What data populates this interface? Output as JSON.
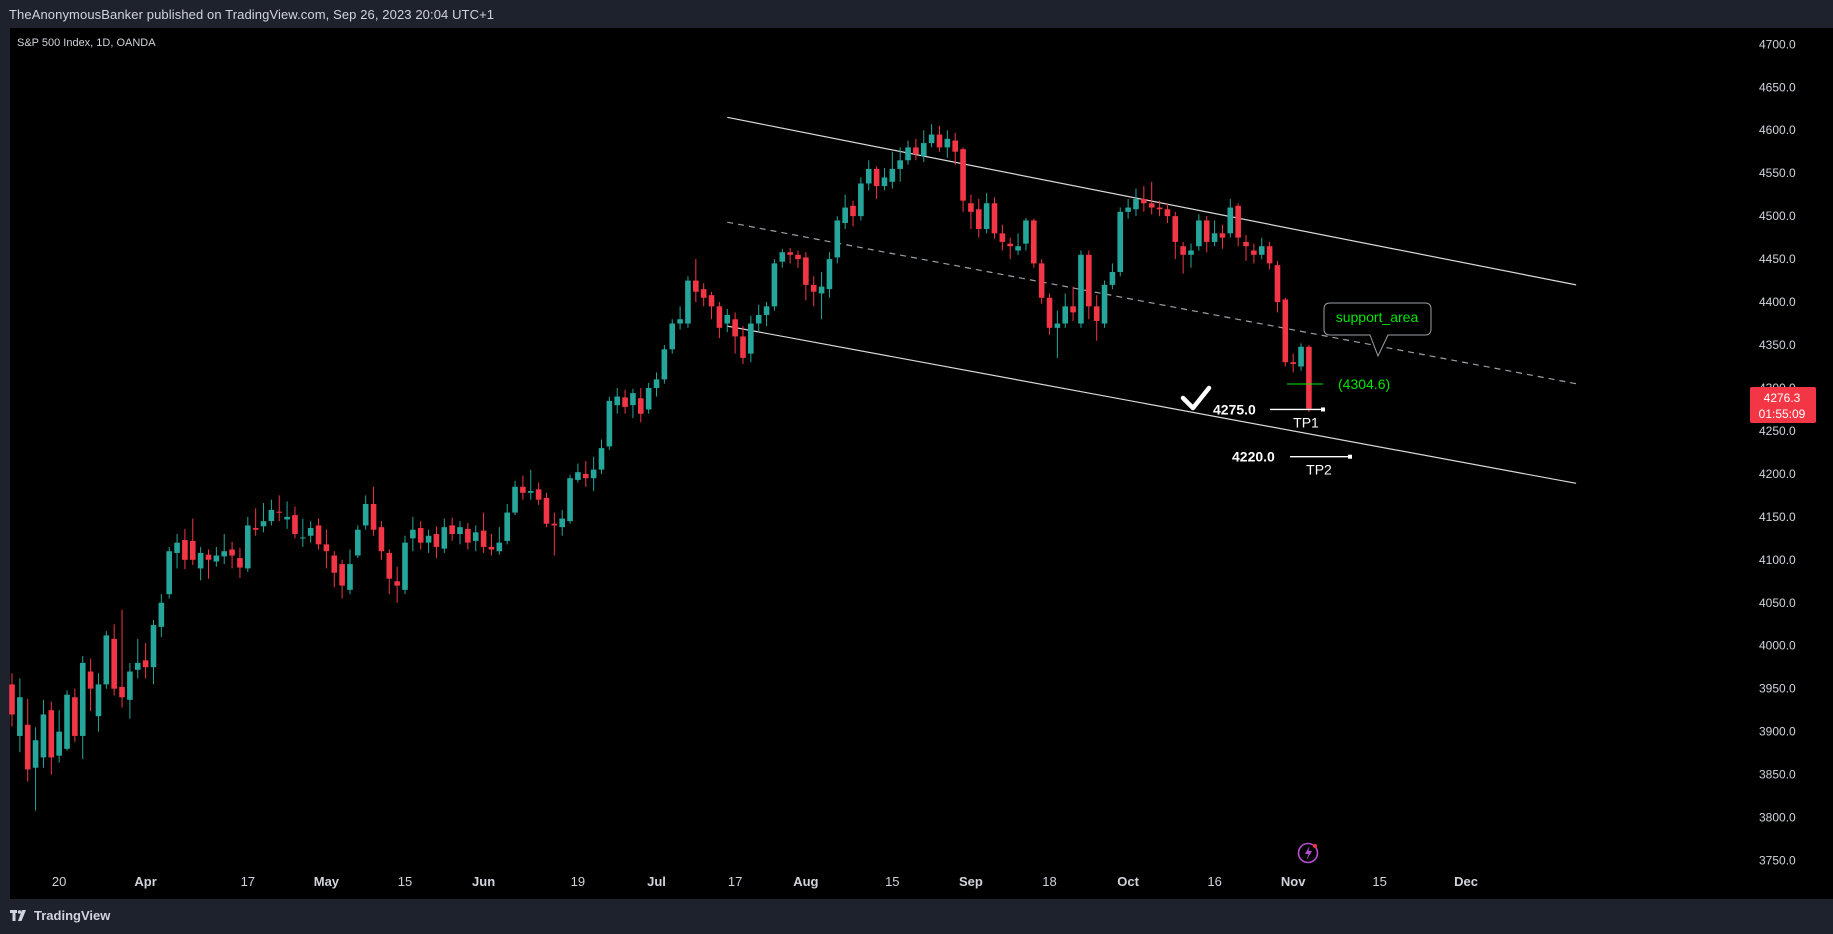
{
  "header": {
    "published_line": "TheAnonymousBanker published on TradingView.com, Sep 26, 2023 20:04 UTC+1"
  },
  "footer": {
    "brand": "TradingView"
  },
  "colors": {
    "background": "#000000",
    "frame": "#1e222d",
    "up": "#26a69a",
    "down": "#f23645",
    "text": "#d1d4dc",
    "annotation_green": "#00e600",
    "price_tag": "#f23645"
  },
  "chart_data": {
    "type": "candlestick",
    "symbol_line": "S&P 500 Index, 1D, OANDA",
    "ylim": [
      3725,
      4712
    ],
    "y_ticks": [
      "4700.0",
      "4650.0",
      "4600.0",
      "4550.0",
      "4500.0",
      "4450.0",
      "4400.0",
      "4350.0",
      "4300.0",
      "4250.0",
      "4200.0",
      "4150.0",
      "4100.0",
      "4050.0",
      "4000.0",
      "3950.0",
      "3900.0",
      "3850.0",
      "3800.0",
      "3750.0"
    ],
    "x_ticks": [
      "20",
      "Apr",
      "17",
      "May",
      "15",
      "Jun",
      "19",
      "Jul",
      "17",
      "Aug",
      "15",
      "Sep",
      "18",
      "Oct",
      "16",
      "Nov",
      "15",
      "Dec"
    ],
    "last_price": {
      "value": "4276.3",
      "countdown": "01:55:09"
    },
    "candles": [
      {
        "x": 0,
        "o": 3955,
        "c": 3920,
        "h": 3968,
        "l": 3906
      },
      {
        "x": 1,
        "o": 3895,
        "c": 3940,
        "h": 3962,
        "l": 3876
      },
      {
        "x": 2,
        "o": 3908,
        "c": 3856,
        "h": 3938,
        "l": 3842
      },
      {
        "x": 3,
        "o": 3858,
        "c": 3890,
        "h": 3905,
        "l": 3808
      },
      {
        "x": 4,
        "o": 3870,
        "c": 3920,
        "h": 3937,
        "l": 3858
      },
      {
        "x": 5,
        "o": 3925,
        "c": 3870,
        "h": 3935,
        "l": 3850
      },
      {
        "x": 6,
        "o": 3872,
        "c": 3900,
        "h": 3925,
        "l": 3864
      },
      {
        "x": 7,
        "o": 3880,
        "c": 3943,
        "h": 3948,
        "l": 3878
      },
      {
        "x": 8,
        "o": 3940,
        "c": 3895,
        "h": 3950,
        "l": 3888
      },
      {
        "x": 9,
        "o": 3895,
        "c": 3980,
        "h": 3988,
        "l": 3868
      },
      {
        "x": 10,
        "o": 3970,
        "c": 3950,
        "h": 3985,
        "l": 3924
      },
      {
        "x": 11,
        "o": 3918,
        "c": 3955,
        "h": 3968,
        "l": 3900
      },
      {
        "x": 12,
        "o": 3955,
        "c": 4012,
        "h": 4017,
        "l": 3950
      },
      {
        "x": 13,
        "o": 4008,
        "c": 3950,
        "h": 4025,
        "l": 3942
      },
      {
        "x": 14,
        "o": 3952,
        "c": 3940,
        "h": 4042,
        "l": 3928
      },
      {
        "x": 15,
        "o": 3937,
        "c": 3970,
        "h": 3980,
        "l": 3915
      },
      {
        "x": 16,
        "o": 3972,
        "c": 3980,
        "h": 4008,
        "l": 3962
      },
      {
        "x": 17,
        "o": 3983,
        "c": 3975,
        "h": 4003,
        "l": 3962
      },
      {
        "x": 18,
        "o": 3975,
        "c": 4024,
        "h": 4030,
        "l": 3955
      },
      {
        "x": 19,
        "o": 4022,
        "c": 4050,
        "h": 4060,
        "l": 4010
      },
      {
        "x": 20,
        "o": 4060,
        "c": 4110,
        "h": 4115,
        "l": 4055
      },
      {
        "x": 21,
        "o": 4108,
        "c": 4120,
        "h": 4130,
        "l": 4090
      },
      {
        "x": 22,
        "o": 4123,
        "c": 4100,
        "h": 4136,
        "l": 4089
      },
      {
        "x": 23,
        "o": 4122,
        "c": 4100,
        "h": 4148,
        "l": 4094
      },
      {
        "x": 24,
        "o": 4090,
        "c": 4108,
        "h": 4115,
        "l": 4076
      },
      {
        "x": 25,
        "o": 4106,
        "c": 4100,
        "h": 4112,
        "l": 4078
      },
      {
        "x": 26,
        "o": 4098,
        "c": 4105,
        "h": 4115,
        "l": 4092
      },
      {
        "x": 27,
        "o": 4104,
        "c": 4110,
        "h": 4130,
        "l": 4095
      },
      {
        "x": 28,
        "o": 4112,
        "c": 4105,
        "h": 4121,
        "l": 4090
      },
      {
        "x": 29,
        "o": 4102,
        "c": 4091,
        "h": 4114,
        "l": 4079
      },
      {
        "x": 30,
        "o": 4090,
        "c": 4140,
        "h": 4150,
        "l": 4086
      },
      {
        "x": 31,
        "o": 4137,
        "c": 4135,
        "h": 4160,
        "l": 4128
      },
      {
        "x": 32,
        "o": 4139,
        "c": 4145,
        "h": 4166,
        "l": 4132
      },
      {
        "x": 33,
        "o": 4145,
        "c": 4158,
        "h": 4170,
        "l": 4140
      },
      {
        "x": 34,
        "o": 4156,
        "c": 4155,
        "h": 4175,
        "l": 4145
      },
      {
        "x": 35,
        "o": 4147,
        "c": 4150,
        "h": 4168,
        "l": 4136
      },
      {
        "x": 36,
        "o": 4152,
        "c": 4130,
        "h": 4162,
        "l": 4125
      },
      {
        "x": 37,
        "o": 4125,
        "c": 4126,
        "h": 4148,
        "l": 4115
      },
      {
        "x": 38,
        "o": 4128,
        "c": 4137,
        "h": 4145,
        "l": 4120
      },
      {
        "x": 39,
        "o": 4140,
        "c": 4118,
        "h": 4148,
        "l": 4112
      },
      {
        "x": 40,
        "o": 4118,
        "c": 4110,
        "h": 4135,
        "l": 4090
      },
      {
        "x": 41,
        "o": 4105,
        "c": 4085,
        "h": 4110,
        "l": 4068
      },
      {
        "x": 42,
        "o": 4095,
        "c": 4070,
        "h": 4100,
        "l": 4055
      },
      {
        "x": 43,
        "o": 4065,
        "c": 4095,
        "h": 4112,
        "l": 4060
      },
      {
        "x": 44,
        "o": 4105,
        "c": 4135,
        "h": 4140,
        "l": 4102
      },
      {
        "x": 45,
        "o": 4140,
        "c": 4165,
        "h": 4175,
        "l": 4135
      },
      {
        "x": 46,
        "o": 4165,
        "c": 4135,
        "h": 4185,
        "l": 4128
      },
      {
        "x": 47,
        "o": 4138,
        "c": 4110,
        "h": 4145,
        "l": 4100
      },
      {
        "x": 48,
        "o": 4108,
        "c": 4078,
        "h": 4112,
        "l": 4060
      },
      {
        "x": 49,
        "o": 4075,
        "c": 4070,
        "h": 4092,
        "l": 4050
      },
      {
        "x": 50,
        "o": 4065,
        "c": 4120,
        "h": 4128,
        "l": 4060
      },
      {
        "x": 51,
        "o": 4125,
        "c": 4135,
        "h": 4150,
        "l": 4110
      },
      {
        "x": 52,
        "o": 4137,
        "c": 4120,
        "h": 4145,
        "l": 4112
      },
      {
        "x": 53,
        "o": 4120,
        "c": 4128,
        "h": 4135,
        "l": 4108
      },
      {
        "x": 54,
        "o": 4130,
        "c": 4115,
        "h": 4139,
        "l": 4102
      },
      {
        "x": 55,
        "o": 4113,
        "c": 4138,
        "h": 4148,
        "l": 4108
      },
      {
        "x": 56,
        "o": 4140,
        "c": 4130,
        "h": 4149,
        "l": 4122
      },
      {
        "x": 57,
        "o": 4130,
        "c": 4138,
        "h": 4145,
        "l": 4118
      },
      {
        "x": 58,
        "o": 4136,
        "c": 4120,
        "h": 4143,
        "l": 4112
      },
      {
        "x": 59,
        "o": 4122,
        "c": 4132,
        "h": 4140,
        "l": 4110
      },
      {
        "x": 60,
        "o": 4134,
        "c": 4115,
        "h": 4155,
        "l": 4108
      },
      {
        "x": 61,
        "o": 4115,
        "c": 4112,
        "h": 4130,
        "l": 4105
      },
      {
        "x": 62,
        "o": 4110,
        "c": 4120,
        "h": 4138,
        "l": 4106
      },
      {
        "x": 63,
        "o": 4122,
        "c": 4155,
        "h": 4165,
        "l": 4118
      },
      {
        "x": 64,
        "o": 4155,
        "c": 4185,
        "h": 4192,
        "l": 4152
      },
      {
        "x": 65,
        "o": 4185,
        "c": 4178,
        "h": 4198,
        "l": 4170
      },
      {
        "x": 66,
        "o": 4178,
        "c": 4180,
        "h": 4205,
        "l": 4170
      },
      {
        "x": 67,
        "o": 4182,
        "c": 4170,
        "h": 4190,
        "l": 4164
      },
      {
        "x": 68,
        "o": 4172,
        "c": 4142,
        "h": 4178,
        "l": 4138
      },
      {
        "x": 69,
        "o": 4142,
        "c": 4140,
        "h": 4155,
        "l": 4105
      },
      {
        "x": 70,
        "o": 4138,
        "c": 4148,
        "h": 4158,
        "l": 4128
      },
      {
        "x": 71,
        "o": 4145,
        "c": 4195,
        "h": 4199,
        "l": 4142
      },
      {
        "x": 72,
        "o": 4193,
        "c": 4202,
        "h": 4212,
        "l": 4190
      },
      {
        "x": 73,
        "o": 4200,
        "c": 4195,
        "h": 4215,
        "l": 4185
      },
      {
        "x": 74,
        "o": 4195,
        "c": 4205,
        "h": 4220,
        "l": 4180
      },
      {
        "x": 75,
        "o": 4205,
        "c": 4230,
        "h": 4240,
        "l": 4200
      },
      {
        "x": 76,
        "o": 4232,
        "c": 4285,
        "h": 4290,
        "l": 4228
      },
      {
        "x": 77,
        "o": 4280,
        "c": 4290,
        "h": 4300,
        "l": 4270
      },
      {
        "x": 78,
        "o": 4289,
        "c": 4278,
        "h": 4298,
        "l": 4270
      },
      {
        "x": 79,
        "o": 4280,
        "c": 4294,
        "h": 4299,
        "l": 4265
      },
      {
        "x": 80,
        "o": 4288,
        "c": 4270,
        "h": 4300,
        "l": 4260
      },
      {
        "x": 81,
        "o": 4275,
        "c": 4300,
        "h": 4306,
        "l": 4270
      },
      {
        "x": 82,
        "o": 4300,
        "c": 4310,
        "h": 4318,
        "l": 4290
      },
      {
        "x": 83,
        "o": 4310,
        "c": 4345,
        "h": 4350,
        "l": 4305
      },
      {
        "x": 84,
        "o": 4345,
        "c": 4375,
        "h": 4380,
        "l": 4340
      },
      {
        "x": 85,
        "o": 4375,
        "c": 4380,
        "h": 4395,
        "l": 4368
      },
      {
        "x": 86,
        "o": 4375,
        "c": 4425,
        "h": 4430,
        "l": 4370
      },
      {
        "x": 87,
        "o": 4425,
        "c": 4412,
        "h": 4450,
        "l": 4400
      },
      {
        "x": 88,
        "o": 4415,
        "c": 4405,
        "h": 4422,
        "l": 4395
      },
      {
        "x": 89,
        "o": 4408,
        "c": 4395,
        "h": 4412,
        "l": 4380
      },
      {
        "x": 90,
        "o": 4395,
        "c": 4370,
        "h": 4400,
        "l": 4358
      },
      {
        "x": 91,
        "o": 4375,
        "c": 4385,
        "h": 4392,
        "l": 4365
      },
      {
        "x": 92,
        "o": 4380,
        "c": 4360,
        "h": 4388,
        "l": 4340
      },
      {
        "x": 93,
        "o": 4360,
        "c": 4335,
        "h": 4372,
        "l": 4328
      },
      {
        "x": 94,
        "o": 4340,
        "c": 4375,
        "h": 4384,
        "l": 4330
      },
      {
        "x": 95,
        "o": 4375,
        "c": 4385,
        "h": 4397,
        "l": 4365
      },
      {
        "x": 96,
        "o": 4385,
        "c": 4395,
        "h": 4400,
        "l": 4372
      },
      {
        "x": 97,
        "o": 4395,
        "c": 4445,
        "h": 4450,
        "l": 4390
      },
      {
        "x": 98,
        "o": 4447,
        "c": 4458,
        "h": 4462,
        "l": 4440
      },
      {
        "x": 99,
        "o": 4458,
        "c": 4455,
        "h": 4463,
        "l": 4445
      },
      {
        "x": 100,
        "o": 4455,
        "c": 4450,
        "h": 4460,
        "l": 4440
      },
      {
        "x": 101,
        "o": 4452,
        "c": 4420,
        "h": 4458,
        "l": 4402
      },
      {
        "x": 102,
        "o": 4420,
        "c": 4412,
        "h": 4430,
        "l": 4395
      },
      {
        "x": 103,
        "o": 4410,
        "c": 4418,
        "h": 4435,
        "l": 4380
      },
      {
        "x": 104,
        "o": 4415,
        "c": 4450,
        "h": 4458,
        "l": 4405
      },
      {
        "x": 105,
        "o": 4452,
        "c": 4495,
        "h": 4500,
        "l": 4445
      },
      {
        "x": 106,
        "o": 4492,
        "c": 4510,
        "h": 4525,
        "l": 4485
      },
      {
        "x": 107,
        "o": 4512,
        "c": 4500,
        "h": 4518,
        "l": 4488
      },
      {
        "x": 108,
        "o": 4500,
        "c": 4538,
        "h": 4545,
        "l": 4495
      },
      {
        "x": 109,
        "o": 4538,
        "c": 4555,
        "h": 4565,
        "l": 4530
      },
      {
        "x": 110,
        "o": 4555,
        "c": 4535,
        "h": 4558,
        "l": 4520
      },
      {
        "x": 111,
        "o": 4535,
        "c": 4545,
        "h": 4556,
        "l": 4530
      },
      {
        "x": 112,
        "o": 4540,
        "c": 4555,
        "h": 4575,
        "l": 4532
      },
      {
        "x": 113,
        "o": 4555,
        "c": 4565,
        "h": 4580,
        "l": 4540
      },
      {
        "x": 114,
        "o": 4565,
        "c": 4580,
        "h": 4588,
        "l": 4560
      },
      {
        "x": 115,
        "o": 4580,
        "c": 4572,
        "h": 4590,
        "l": 4565
      },
      {
        "x": 116,
        "o": 4570,
        "c": 4585,
        "h": 4600,
        "l": 4563
      },
      {
        "x": 117,
        "o": 4585,
        "c": 4595,
        "h": 4607,
        "l": 4580
      },
      {
        "x": 118,
        "o": 4595,
        "c": 4580,
        "h": 4605,
        "l": 4575
      },
      {
        "x": 119,
        "o": 4580,
        "c": 4590,
        "h": 4600,
        "l": 4568
      },
      {
        "x": 120,
        "o": 4588,
        "c": 4575,
        "h": 4597,
        "l": 4560
      },
      {
        "x": 121,
        "o": 4578,
        "c": 4518,
        "h": 4580,
        "l": 4505
      },
      {
        "x": 122,
        "o": 4515,
        "c": 4505,
        "h": 4525,
        "l": 4485
      },
      {
        "x": 123,
        "o": 4508,
        "c": 4485,
        "h": 4520,
        "l": 4475
      },
      {
        "x": 124,
        "o": 4485,
        "c": 4515,
        "h": 4527,
        "l": 4480
      },
      {
        "x": 125,
        "o": 4515,
        "c": 4480,
        "h": 4522,
        "l": 4474
      },
      {
        "x": 126,
        "o": 4480,
        "c": 4470,
        "h": 4490,
        "l": 4460
      },
      {
        "x": 127,
        "o": 4468,
        "c": 4465,
        "h": 4475,
        "l": 4450
      },
      {
        "x": 128,
        "o": 4460,
        "c": 4465,
        "h": 4480,
        "l": 4455
      },
      {
        "x": 129,
        "o": 4468,
        "c": 4495,
        "h": 4498,
        "l": 4460
      },
      {
        "x": 130,
        "o": 4495,
        "c": 4445,
        "h": 4497,
        "l": 4440
      },
      {
        "x": 131,
        "o": 4445,
        "c": 4405,
        "h": 4450,
        "l": 4398
      },
      {
        "x": 132,
        "o": 4405,
        "c": 4370,
        "h": 4410,
        "l": 4362
      },
      {
        "x": 133,
        "o": 4370,
        "c": 4375,
        "h": 4390,
        "l": 4335
      },
      {
        "x": 134,
        "o": 4375,
        "c": 4395,
        "h": 4410,
        "l": 4370
      },
      {
        "x": 135,
        "o": 4395,
        "c": 4388,
        "h": 4418,
        "l": 4378
      },
      {
        "x": 136,
        "o": 4375,
        "c": 4455,
        "h": 4460,
        "l": 4370
      },
      {
        "x": 137,
        "o": 4455,
        "c": 4395,
        "h": 4460,
        "l": 4380
      },
      {
        "x": 138,
        "o": 4395,
        "c": 4378,
        "h": 4408,
        "l": 4355
      },
      {
        "x": 139,
        "o": 4375,
        "c": 4420,
        "h": 4425,
        "l": 4370
      },
      {
        "x": 140,
        "o": 4420,
        "c": 4435,
        "h": 4445,
        "l": 4415
      },
      {
        "x": 141,
        "o": 4435,
        "c": 4505,
        "h": 4510,
        "l": 4430
      },
      {
        "x": 142,
        "o": 4505,
        "c": 4510,
        "h": 4520,
        "l": 4497
      },
      {
        "x": 143,
        "o": 4508,
        "c": 4520,
        "h": 4532,
        "l": 4500
      },
      {
        "x": 144,
        "o": 4520,
        "c": 4515,
        "h": 4535,
        "l": 4505
      },
      {
        "x": 145,
        "o": 4515,
        "c": 4510,
        "h": 4540,
        "l": 4502
      },
      {
        "x": 146,
        "o": 4510,
        "c": 4508,
        "h": 4518,
        "l": 4500
      },
      {
        "x": 147,
        "o": 4508,
        "c": 4500,
        "h": 4515,
        "l": 4492
      },
      {
        "x": 148,
        "o": 4500,
        "c": 4470,
        "h": 4505,
        "l": 4450
      },
      {
        "x": 149,
        "o": 4465,
        "c": 4455,
        "h": 4470,
        "l": 4433
      },
      {
        "x": 150,
        "o": 4455,
        "c": 4460,
        "h": 4468,
        "l": 4440
      },
      {
        "x": 151,
        "o": 4465,
        "c": 4495,
        "h": 4502,
        "l": 4460
      },
      {
        "x": 152,
        "o": 4495,
        "c": 4470,
        "h": 4500,
        "l": 4458
      },
      {
        "x": 153,
        "o": 4470,
        "c": 4480,
        "h": 4495,
        "l": 4465
      },
      {
        "x": 154,
        "o": 4480,
        "c": 4475,
        "h": 4490,
        "l": 4462
      },
      {
        "x": 155,
        "o": 4480,
        "c": 4510,
        "h": 4520,
        "l": 4475
      },
      {
        "x": 156,
        "o": 4512,
        "c": 4475,
        "h": 4515,
        "l": 4465
      },
      {
        "x": 157,
        "o": 4470,
        "c": 4465,
        "h": 4478,
        "l": 4448
      },
      {
        "x": 158,
        "o": 4460,
        "c": 4455,
        "h": 4468,
        "l": 4445
      },
      {
        "x": 159,
        "o": 4455,
        "c": 4465,
        "h": 4475,
        "l": 4450
      },
      {
        "x": 160,
        "o": 4465,
        "c": 4445,
        "h": 4470,
        "l": 4438
      },
      {
        "x": 161,
        "o": 4443,
        "c": 4400,
        "h": 4448,
        "l": 4388
      },
      {
        "x": 162,
        "o": 4403,
        "c": 4330,
        "h": 4405,
        "l": 4325
      },
      {
        "x": 163,
        "o": 4330,
        "c": 4328,
        "h": 4340,
        "l": 4318
      },
      {
        "x": 164,
        "o": 4325,
        "c": 4348,
        "h": 4352,
        "l": 4320
      },
      {
        "x": 165,
        "o": 4348,
        "c": 4276,
        "h": 4350,
        "l": 4272
      }
    ],
    "drawings": {
      "channel_upper": [
        [
          4615,
          91
        ],
        [
          4420,
          199
        ]
      ],
      "channel_lower": [
        [
          4372,
          91
        ],
        [
          4189,
          199
        ]
      ],
      "channel_mid": [
        [
          4493,
          91
        ],
        [
          4305,
          199
        ]
      ]
    },
    "annotations": {
      "support_label": "support_area",
      "support_value": "(4304.6)",
      "tp1_price": "4275.0",
      "tp1_label": "TP1",
      "tp2_price": "4220.0",
      "tp2_label": "TP2"
    }
  }
}
